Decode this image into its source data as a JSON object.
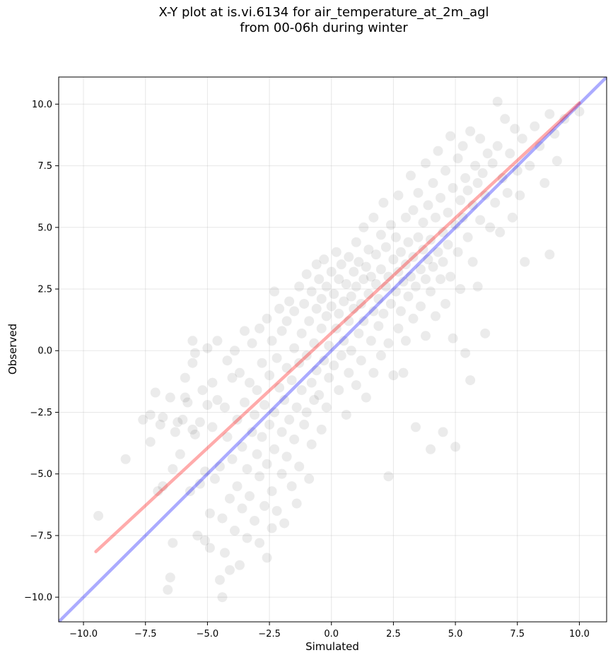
{
  "title": {
    "line1": "X-Y plot at is.vi.6134 for air_temperature_at_2m_agl",
    "line2": "from 00-06h during winter"
  },
  "chart_data": {
    "type": "scatter",
    "title": "X-Y plot at is.vi.6134 for air_temperature_at_2m_agl from 00-06h during winter",
    "xlabel": "Simulated",
    "ylabel": "Observed",
    "xlim": [
      -11.0,
      11.1
    ],
    "ylim": [
      -11.0,
      11.1
    ],
    "xticks": [
      -10.0,
      -7.5,
      -5.0,
      -2.5,
      0.0,
      2.5,
      5.0,
      7.5,
      10.0
    ],
    "yticks": [
      -10.0,
      -7.5,
      -5.0,
      -2.5,
      0.0,
      2.5,
      5.0,
      7.5,
      10.0
    ],
    "xtick_labels": [
      "−10.0",
      "−7.5",
      "−5.0",
      "−2.5",
      "0.0",
      "2.5",
      "5.0",
      "7.5",
      "10.0"
    ],
    "ytick_labels": [
      "−10.0",
      "−7.5",
      "−5.0",
      "−2.5",
      "0.0",
      "2.5",
      "5.0",
      "7.5",
      "10.0"
    ],
    "grid": true,
    "marker_color": "#000000",
    "marker_alpha": 0.08,
    "points": [
      [
        -9.4,
        -6.7
      ],
      [
        -8.3,
        -4.4
      ],
      [
        -7.6,
        -2.8
      ],
      [
        -7.3,
        -2.6
      ],
      [
        -7.3,
        -3.7
      ],
      [
        -7.1,
        -1.7
      ],
      [
        -7.0,
        -5.7
      ],
      [
        -6.9,
        -3.0
      ],
      [
        -6.8,
        -5.5
      ],
      [
        -6.8,
        -2.7
      ],
      [
        -6.6,
        -9.7
      ],
      [
        -6.5,
        -9.2
      ],
      [
        -6.5,
        -1.9
      ],
      [
        -6.4,
        -4.8
      ],
      [
        -6.4,
        -7.8
      ],
      [
        -6.3,
        -3.3
      ],
      [
        -6.2,
        -2.9
      ],
      [
        -6.1,
        -4.2
      ],
      [
        -6.0,
        -2.8
      ],
      [
        -5.9,
        -1.9
      ],
      [
        -5.9,
        -1.1
      ],
      [
        -5.8,
        -2.1
      ],
      [
        -5.7,
        -5.7
      ],
      [
        -5.6,
        -3.2
      ],
      [
        -5.6,
        -0.5
      ],
      [
        -5.6,
        0.4
      ],
      [
        -5.5,
        -3.4
      ],
      [
        -5.5,
        -0.1
      ],
      [
        -5.4,
        -7.5
      ],
      [
        -5.3,
        -5.4
      ],
      [
        -5.3,
        -2.9
      ],
      [
        -5.2,
        -1.6
      ],
      [
        -5.1,
        -4.9
      ],
      [
        -5.1,
        -7.7
      ],
      [
        -5.0,
        0.1
      ],
      [
        -5.0,
        -2.2
      ],
      [
        -4.9,
        -8.0
      ],
      [
        -4.9,
        -6.6
      ],
      [
        -4.8,
        -1.3
      ],
      [
        -4.8,
        -3.1
      ],
      [
        -4.7,
        -5.2
      ],
      [
        -4.6,
        0.4
      ],
      [
        -4.6,
        -2.0
      ],
      [
        -4.5,
        -9.3
      ],
      [
        -4.5,
        -4.7
      ],
      [
        -4.4,
        -10.0
      ],
      [
        -4.4,
        -6.8
      ],
      [
        -4.3,
        -2.3
      ],
      [
        -4.3,
        -8.2
      ],
      [
        -4.2,
        -0.4
      ],
      [
        -4.2,
        -3.5
      ],
      [
        -4.1,
        -6.0
      ],
      [
        -4.1,
        -8.9
      ],
      [
        -4.0,
        -1.1
      ],
      [
        -4.0,
        -4.4
      ],
      [
        -3.9,
        -7.3
      ],
      [
        -3.9,
        0.0
      ],
      [
        -3.8,
        -2.8
      ],
      [
        -3.8,
        -5.5
      ],
      [
        -3.7,
        -8.7
      ],
      [
        -3.7,
        -0.9
      ],
      [
        -3.6,
        -3.9
      ],
      [
        -3.6,
        -6.4
      ],
      [
        -3.5,
        0.8
      ],
      [
        -3.5,
        -2.1
      ],
      [
        -3.4,
        -4.8
      ],
      [
        -3.4,
        -7.6
      ],
      [
        -3.3,
        -1.3
      ],
      [
        -3.3,
        -5.9
      ],
      [
        -3.2,
        -3.3
      ],
      [
        -3.2,
        0.3
      ],
      [
        -3.1,
        -6.9
      ],
      [
        -3.1,
        -2.6
      ],
      [
        -3.0,
        -4.2
      ],
      [
        -3.0,
        -1.6
      ],
      [
        -2.9,
        -7.8
      ],
      [
        -2.9,
        -5.1
      ],
      [
        -2.9,
        0.9
      ],
      [
        -2.8,
        -3.5
      ],
      [
        -2.8,
        -0.5
      ],
      [
        -2.7,
        -6.3
      ],
      [
        -2.7,
        -2.2
      ],
      [
        -2.6,
        -8.4
      ],
      [
        -2.6,
        -4.6
      ],
      [
        -2.6,
        1.3
      ],
      [
        -2.5,
        -1.0
      ],
      [
        -2.5,
        -3.0
      ],
      [
        -2.4,
        -5.7
      ],
      [
        -2.4,
        -7.2
      ],
      [
        -2.4,
        0.4
      ],
      [
        -2.3,
        -2.5
      ],
      [
        -2.3,
        2.4
      ],
      [
        -2.3,
        -4.0
      ],
      [
        -2.2,
        -0.3
      ],
      [
        -2.2,
        -6.5
      ],
      [
        -2.1,
        -1.5
      ],
      [
        -2.1,
        1.7
      ],
      [
        -2.0,
        -3.3
      ],
      [
        -2.0,
        -5.0
      ],
      [
        -2.0,
        0.8
      ],
      [
        -1.9,
        -2.0
      ],
      [
        -1.9,
        -7.0
      ],
      [
        -1.8,
        -0.7
      ],
      [
        -1.8,
        1.2
      ],
      [
        -1.8,
        -4.3
      ],
      [
        -1.7,
        -2.8
      ],
      [
        -1.7,
        2.0
      ],
      [
        -1.6,
        -1.2
      ],
      [
        -1.6,
        -5.5
      ],
      [
        -1.5,
        0.1
      ],
      [
        -1.5,
        -3.6
      ],
      [
        -1.5,
        1.6
      ],
      [
        -1.4,
        -2.3
      ],
      [
        -1.4,
        -6.2
      ],
      [
        -1.3,
        -0.5
      ],
      [
        -1.3,
        2.6
      ],
      [
        -1.3,
        -4.7
      ],
      [
        -1.2,
        -1.6
      ],
      [
        -1.2,
        0.7
      ],
      [
        -1.1,
        -3.0
      ],
      [
        -1.1,
        1.9
      ],
      [
        -1.0,
        -0.2
      ],
      [
        -1.0,
        -2.5
      ],
      [
        -1.0,
        3.1
      ],
      [
        -0.9,
        -5.2
      ],
      [
        -0.9,
        1.2
      ],
      [
        -0.8,
        -1.3
      ],
      [
        -0.8,
        2.4
      ],
      [
        -0.8,
        -3.8
      ],
      [
        -0.7,
        0.3
      ],
      [
        -0.7,
        -2.0
      ],
      [
        -0.6,
        1.7
      ],
      [
        -0.6,
        3.5
      ],
      [
        -0.6,
        -0.8
      ],
      [
        -0.5,
        2.9
      ],
      [
        -0.5,
        -1.8
      ],
      [
        -0.4,
        0.9
      ],
      [
        -0.4,
        -3.2
      ],
      [
        -0.4,
        2.1
      ],
      [
        -0.3,
        -0.4
      ],
      [
        -0.3,
        3.7
      ],
      [
        -0.2,
        1.4
      ],
      [
        -0.2,
        -2.3
      ],
      [
        -0.2,
        2.6
      ],
      [
        -0.1,
        0.2
      ],
      [
        -0.1,
        -1.1
      ],
      [
        0.0,
        3.2
      ],
      [
        0.0,
        1.8
      ],
      [
        0.1,
        -0.6
      ],
      [
        0.1,
        2.3
      ],
      [
        0.2,
        4.0
      ],
      [
        0.2,
        0.9
      ],
      [
        0.3,
        -1.6
      ],
      [
        0.3,
        2.9
      ],
      [
        0.3,
        1.5
      ],
      [
        0.4,
        -0.2
      ],
      [
        0.4,
        3.5
      ],
      [
        0.5,
        2.0
      ],
      [
        0.5,
        0.4
      ],
      [
        0.6,
        -2.6
      ],
      [
        0.6,
        2.7
      ],
      [
        0.7,
        1.2
      ],
      [
        0.7,
        3.8
      ],
      [
        0.7,
        -0.9
      ],
      [
        0.8,
        2.2
      ],
      [
        0.8,
        0.0
      ],
      [
        0.9,
        3.2
      ],
      [
        0.9,
        1.7
      ],
      [
        1.0,
        -1.4
      ],
      [
        1.0,
        4.4
      ],
      [
        1.0,
        2.6
      ],
      [
        1.1,
        0.7
      ],
      [
        1.1,
        3.6
      ],
      [
        1.2,
        1.9
      ],
      [
        1.2,
        -0.4
      ],
      [
        1.3,
        2.9
      ],
      [
        1.3,
        5.0
      ],
      [
        1.3,
        1.2
      ],
      [
        1.4,
        3.4
      ],
      [
        1.4,
        -1.9
      ],
      [
        1.5,
        2.3
      ],
      [
        1.5,
        4.1
      ],
      [
        1.6,
        0.4
      ],
      [
        1.6,
        3.0
      ],
      [
        1.7,
        1.6
      ],
      [
        1.7,
        5.4
      ],
      [
        1.7,
        -0.9
      ],
      [
        1.8,
        2.7
      ],
      [
        1.8,
        3.9
      ],
      [
        1.9,
        1.0
      ],
      [
        1.9,
        2.1
      ],
      [
        2.0,
        4.7
      ],
      [
        2.0,
        -0.2
      ],
      [
        2.0,
        3.3
      ],
      [
        2.1,
        1.5
      ],
      [
        2.1,
        6.0
      ],
      [
        2.2,
        2.6
      ],
      [
        2.2,
        4.2
      ],
      [
        2.3,
        0.3
      ],
      [
        2.3,
        3.0
      ],
      [
        2.3,
        -5.1
      ],
      [
        2.4,
        1.9
      ],
      [
        2.4,
        5.1
      ],
      [
        2.5,
        3.7
      ],
      [
        2.5,
        -1.0
      ],
      [
        2.6,
        2.4
      ],
      [
        2.6,
        4.6
      ],
      [
        2.7,
        0.9
      ],
      [
        2.7,
        3.2
      ],
      [
        2.7,
        6.3
      ],
      [
        2.8,
        1.6
      ],
      [
        2.8,
        4.0
      ],
      [
        2.9,
        2.8
      ],
      [
        2.9,
        -0.9
      ],
      [
        3.0,
        5.4
      ],
      [
        3.0,
        3.5
      ],
      [
        3.0,
        0.4
      ],
      [
        3.1,
        2.2
      ],
      [
        3.1,
        4.4
      ],
      [
        3.2,
        7.1
      ],
      [
        3.2,
        3.0
      ],
      [
        3.3,
        1.3
      ],
      [
        3.3,
        5.7
      ],
      [
        3.3,
        3.8
      ],
      [
        3.4,
        -3.1
      ],
      [
        3.4,
        2.6
      ],
      [
        3.5,
        4.6
      ],
      [
        3.5,
        6.4
      ],
      [
        3.6,
        3.3
      ],
      [
        3.6,
        1.8
      ],
      [
        3.7,
        5.2
      ],
      [
        3.7,
        4.1
      ],
      [
        3.8,
        2.9
      ],
      [
        3.8,
        7.6
      ],
      [
        3.8,
        0.6
      ],
      [
        3.9,
        3.7
      ],
      [
        3.9,
        5.9
      ],
      [
        4.0,
        -4.0
      ],
      [
        4.0,
        2.4
      ],
      [
        4.0,
        4.5
      ],
      [
        4.1,
        6.8
      ],
      [
        4.1,
        3.4
      ],
      [
        4.2,
        1.4
      ],
      [
        4.2,
        5.4
      ],
      [
        4.3,
        8.1
      ],
      [
        4.3,
        4.0
      ],
      [
        4.4,
        2.9
      ],
      [
        4.4,
        6.2
      ],
      [
        4.5,
        -3.3
      ],
      [
        4.5,
        4.8
      ],
      [
        4.5,
        3.6
      ],
      [
        4.6,
        7.3
      ],
      [
        4.6,
        1.9
      ],
      [
        4.7,
        5.6
      ],
      [
        4.7,
        4.3
      ],
      [
        4.8,
        8.7
      ],
      [
        4.8,
        3.0
      ],
      [
        4.9,
        6.6
      ],
      [
        4.9,
        0.5
      ],
      [
        5.0,
        5.1
      ],
      [
        5.0,
        -3.9
      ],
      [
        5.1,
        7.8
      ],
      [
        5.1,
        4.0
      ],
      [
        5.2,
        6.1
      ],
      [
        5.2,
        2.5
      ],
      [
        5.3,
        8.3
      ],
      [
        5.3,
        5.4
      ],
      [
        5.4,
        -0.1
      ],
      [
        5.4,
        7.0
      ],
      [
        5.5,
        4.6
      ],
      [
        5.5,
        6.5
      ],
      [
        5.6,
        -1.2
      ],
      [
        5.6,
        8.9
      ],
      [
        5.7,
        5.9
      ],
      [
        5.7,
        3.6
      ],
      [
        5.8,
        7.5
      ],
      [
        5.9,
        2.6
      ],
      [
        5.9,
        6.8
      ],
      [
        6.0,
        8.6
      ],
      [
        6.0,
        5.3
      ],
      [
        6.1,
        7.2
      ],
      [
        6.2,
        0.7
      ],
      [
        6.2,
        6.3
      ],
      [
        6.3,
        8.0
      ],
      [
        6.4,
        5.0
      ],
      [
        6.5,
        7.6
      ],
      [
        6.6,
        6.0
      ],
      [
        6.7,
        10.1
      ],
      [
        6.7,
        8.3
      ],
      [
        6.8,
        4.8
      ],
      [
        6.9,
        7.0
      ],
      [
        7.0,
        9.4
      ],
      [
        7.1,
        6.4
      ],
      [
        7.2,
        8.0
      ],
      [
        7.3,
        5.4
      ],
      [
        7.4,
        9.0
      ],
      [
        7.5,
        7.3
      ],
      [
        7.6,
        6.3
      ],
      [
        7.7,
        8.6
      ],
      [
        7.8,
        3.6
      ],
      [
        8.0,
        7.5
      ],
      [
        8.2,
        9.1
      ],
      [
        8.4,
        8.3
      ],
      [
        8.6,
        6.8
      ],
      [
        8.8,
        9.6
      ],
      [
        8.8,
        3.9
      ],
      [
        9.0,
        8.8
      ],
      [
        9.1,
        7.7
      ],
      [
        9.4,
        9.4
      ],
      [
        10.0,
        9.7
      ]
    ],
    "lines": [
      {
        "x": [
          -11.0,
          11.1
        ],
        "y": [
          -11.0,
          11.1
        ],
        "color": "#0000ff",
        "alpha": 0.33
      },
      {
        "x": [
          -9.5,
          10.0
        ],
        "y": [
          -8.15,
          10.05
        ],
        "color": "#ff0000",
        "alpha": 0.33
      }
    ]
  }
}
